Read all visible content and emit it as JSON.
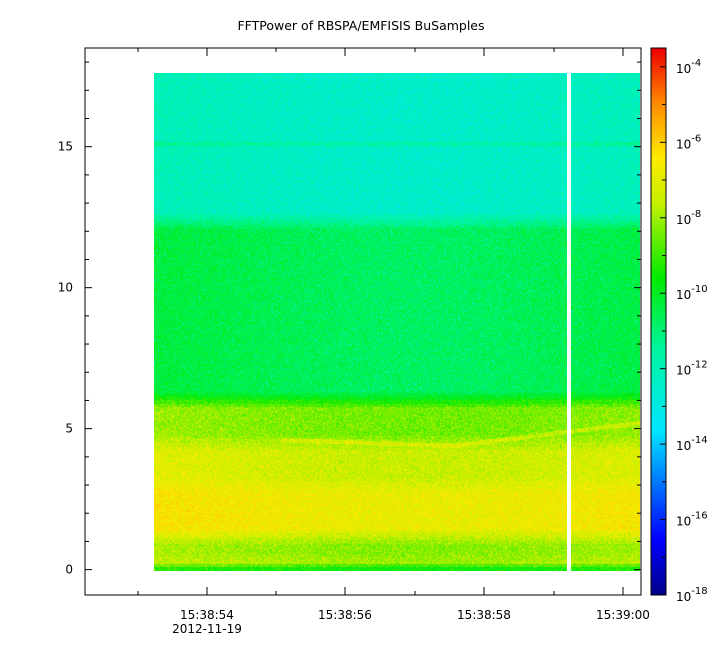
{
  "chart_data": {
    "type": "heatmap",
    "title": "FFTPower of RBSPA/EMFISIS  BuSamples",
    "xlabel": "",
    "ylabel": "",
    "x_ticks": [
      {
        "value": "15:38:54",
        "sub": "2012-11-19"
      },
      {
        "value": "15:38:56",
        "sub": ""
      },
      {
        "value": "15:38:58",
        "sub": ""
      },
      {
        "value": "15:39:00",
        "sub": ""
      }
    ],
    "x_range_seconds": [
      -2.9,
      0.2
    ],
    "y_ticks": [
      0,
      5,
      10,
      15
    ],
    "ylim": [
      -0.9,
      18.5
    ],
    "data_extent": {
      "x_start_seconds": -1.9,
      "y_min": 0,
      "y_max": 17.5
    },
    "gap_at_seconds": -0.1,
    "colorbar": {
      "scale": "log",
      "base": "10",
      "exponents": [
        "-4",
        "-6",
        "-8",
        "-10",
        "-12",
        "-14",
        "-16",
        "-18"
      ],
      "range_exponent": [
        -18,
        -3.5
      ]
    },
    "bands": [
      {
        "y_from": 0,
        "y_to": 0.35,
        "log_power": -7.5
      },
      {
        "y_from": 0.35,
        "y_to": 1.2,
        "log_power": -8.0
      },
      {
        "y_from": 1.2,
        "y_to": 3.0,
        "log_power": -6.6
      },
      {
        "y_from": 3.0,
        "y_to": 4.5,
        "log_power": -7.2
      },
      {
        "y_from": 4.5,
        "y_to": 6.0,
        "log_power": -8.2
      },
      {
        "y_from": 6.0,
        "y_to": 12.3,
        "log_power": -10.5
      },
      {
        "y_from": 12.3,
        "y_to": 17.5,
        "log_power": -12.2
      }
    ],
    "features": [
      {
        "name": "",
        "points": [
          [
            -1.35,
            4.6
          ],
          [
            -0.6,
            4.4
          ],
          [
            0.2,
            5.2
          ]
        ]
      },
      {
        "name": "",
        "points": [
          [
            -1.9,
            15.0
          ],
          [
            0.2,
            15.0
          ]
        ]
      }
    ]
  }
}
